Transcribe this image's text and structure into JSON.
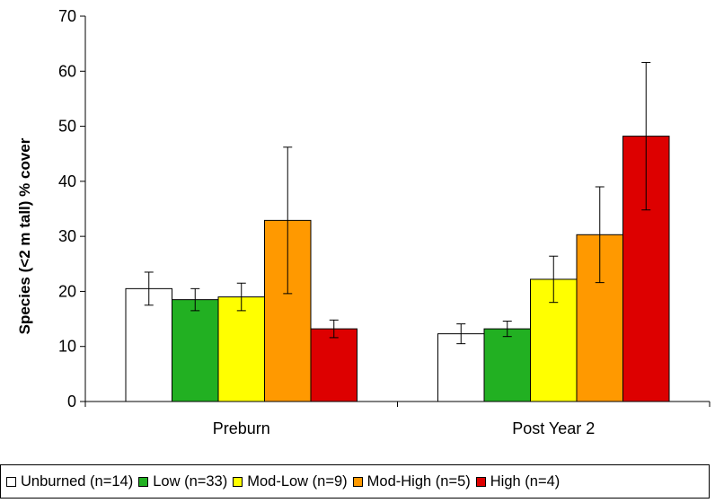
{
  "chart_data": {
    "type": "bar",
    "title": "",
    "xlabel": "",
    "ylabel": "Species (<2 m tall) % cover",
    "ylim": [
      0,
      70
    ],
    "yticks": [
      0,
      10,
      20,
      30,
      40,
      50,
      60,
      70
    ],
    "categories": [
      "Preburn",
      "Post Year 2"
    ],
    "grid": false,
    "legend_position": "bottom",
    "series": [
      {
        "name": "Unburned (n=14)",
        "color": "#ffffff",
        "values": [
          20.5,
          12.3
        ],
        "error": [
          3.0,
          1.8
        ]
      },
      {
        "name": "Low (n=33)",
        "color": "#22b022",
        "values": [
          18.5,
          13.2
        ],
        "error": [
          2.0,
          1.4
        ]
      },
      {
        "name": "Mod-Low (n=9)",
        "color": "#ffff00",
        "values": [
          19.0,
          22.2
        ],
        "error": [
          2.5,
          4.2
        ]
      },
      {
        "name": "Mod-High (n=5)",
        "color": "#ff9900",
        "values": [
          32.9,
          30.3
        ],
        "error": [
          13.3,
          8.7
        ]
      },
      {
        "name": "High (n=4)",
        "color": "#dd0000",
        "values": [
          13.2,
          48.2
        ],
        "error": [
          1.6,
          13.4
        ]
      }
    ]
  }
}
